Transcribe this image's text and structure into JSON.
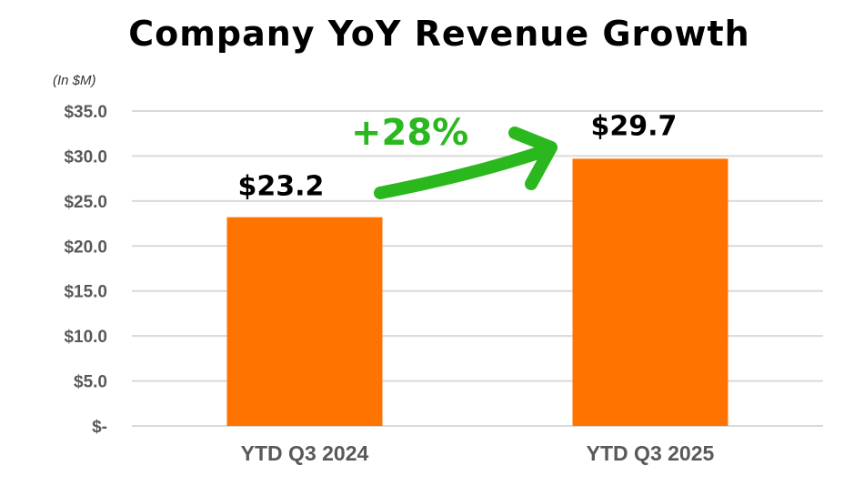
{
  "chart_data": {
    "type": "bar",
    "title": "Company YoY Revenue Growth",
    "unit_label": "(In $M)",
    "categories": [
      "YTD Q3 2024",
      "YTD Q3 2025"
    ],
    "values": [
      23.2,
      29.7
    ],
    "data_labels": [
      "$23.2",
      "$29.7"
    ],
    "ylim": [
      0,
      35
    ],
    "yticks": [
      0,
      5,
      10,
      15,
      20,
      25,
      30,
      35
    ],
    "ytick_labels": [
      "$-",
      "$5.0",
      "$10.0",
      "$15.0",
      "$20.0",
      "$25.0",
      "$30.0",
      "$35.0"
    ],
    "grid": true,
    "annotation": "+28%",
    "bar_color": "#ff7300",
    "annotation_color": "#2ab81e"
  }
}
